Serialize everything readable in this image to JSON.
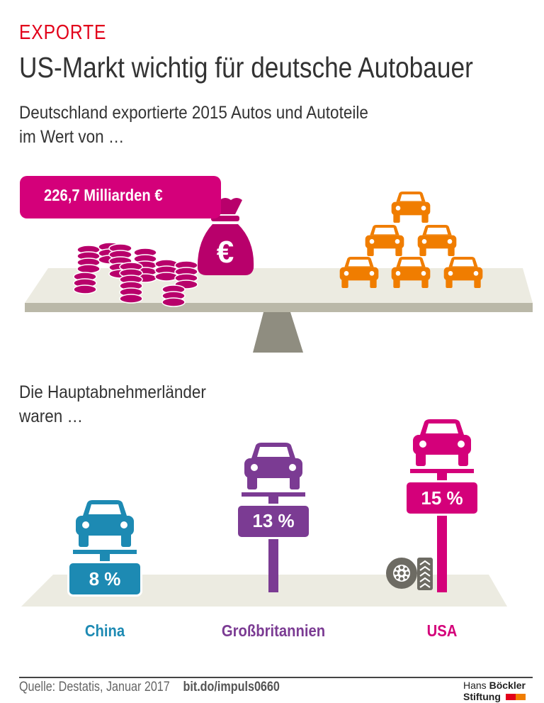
{
  "header": {
    "kicker": "EXPORTE",
    "title": "US-Markt wichtig für deutsche Autobauer",
    "subtitle_line1": "Deutschland exportierte 2015 Autos und Autoteile",
    "subtitle_line2": "im Wert von …"
  },
  "total": {
    "label": "226,7 Milliarden €",
    "icon": "money-bag-euro-icon"
  },
  "section2": {
    "line1": "Die Hauptabnehmerländer",
    "line2": "waren …"
  },
  "chart_data": {
    "type": "bar",
    "categories": [
      "China",
      "Großbritannien",
      "USA"
    ],
    "values": [
      8,
      13,
      15
    ],
    "value_labels": [
      "8 %",
      "13 %",
      "15 %"
    ],
    "unit": "%",
    "colors": [
      "#1d8ab3",
      "#7b3b93",
      "#d4007a"
    ]
  },
  "colors": {
    "accent": "#e2001a",
    "money": "#d4007a",
    "cars": "#f07d00",
    "platform": "#ecebe1",
    "fulcrum": "#8f8d80"
  },
  "footer": {
    "source": "Quelle: Destatis, Januar 2017",
    "link": "bit.do/impuls0660",
    "logo_line1_a": "Hans ",
    "logo_line1_b": "Böckler",
    "logo_line2": "Stiftung"
  }
}
